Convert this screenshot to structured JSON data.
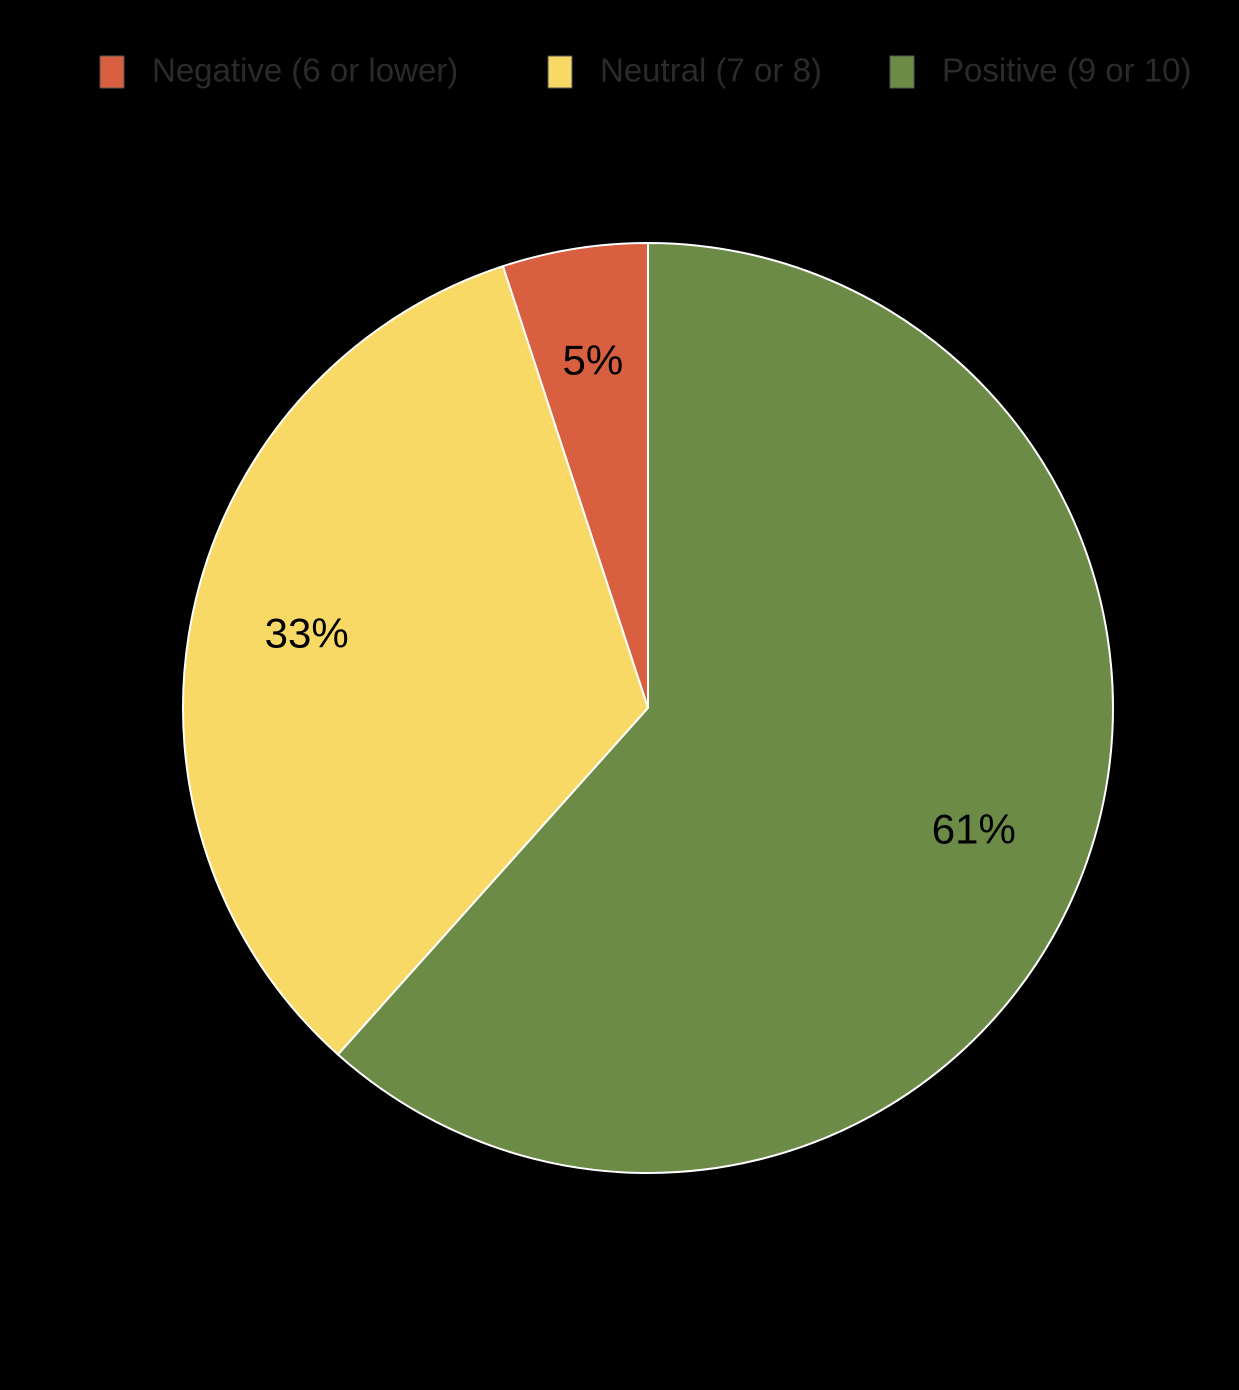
{
  "chart_data": {
    "type": "pie",
    "categories": [
      "Negative (6 or lower)",
      "Neutral (7 or 8)",
      "Positive (9 or 10)"
    ],
    "values": [
      5,
      33,
      61
    ],
    "value_labels": [
      "5%",
      "33%",
      "61%"
    ],
    "colors": [
      "#d85f3f",
      "#f9d966",
      "#6c8b47"
    ],
    "legend": "top"
  }
}
